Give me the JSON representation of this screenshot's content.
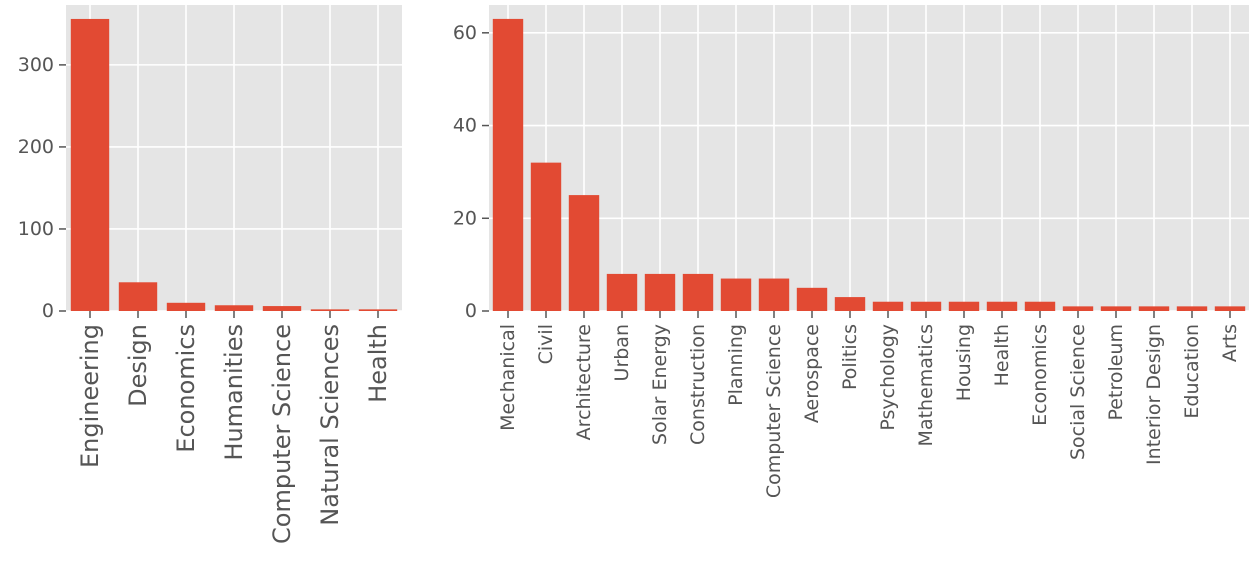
{
  "colors": {
    "bar": "#E24A33",
    "panel_background": "#E5E5E5",
    "grid": "#FFFFFF",
    "tick_label": "#555555",
    "tick_mark": "#555555"
  },
  "chart_data": [
    {
      "type": "bar",
      "title": "",
      "xlabel": "",
      "ylabel": "",
      "categories": [
        "Engineering",
        "Design",
        "Economics",
        "Humanities",
        "Computer Science",
        "Natural Sciences",
        "Health"
      ],
      "values": [
        356,
        35,
        10,
        7,
        6,
        2,
        2
      ],
      "yticks": [
        0,
        100,
        200,
        300
      ],
      "ylim": [
        0,
        373
      ],
      "grid": true,
      "legend": "none"
    },
    {
      "type": "bar",
      "title": "",
      "xlabel": "",
      "ylabel": "",
      "categories": [
        "Mechanical",
        "Civil",
        "Architecture",
        "Urban",
        "Solar Energy",
        "Construction",
        "Planning",
        "Computer Science",
        "Aerospace",
        "Politics",
        "Psychology",
        "Mathematics",
        "Housing",
        "Health",
        "Economics",
        "Social Science",
        "Petroleum",
        "Interior Design",
        "Education",
        "Arts"
      ],
      "values": [
        63,
        32,
        25,
        8,
        8,
        8,
        7,
        7,
        5,
        3,
        2,
        2,
        2,
        2,
        2,
        1,
        1,
        1,
        1,
        1
      ],
      "yticks": [
        0,
        20,
        40,
        60
      ],
      "ylim": [
        0,
        66
      ],
      "grid": true,
      "legend": "none"
    }
  ]
}
